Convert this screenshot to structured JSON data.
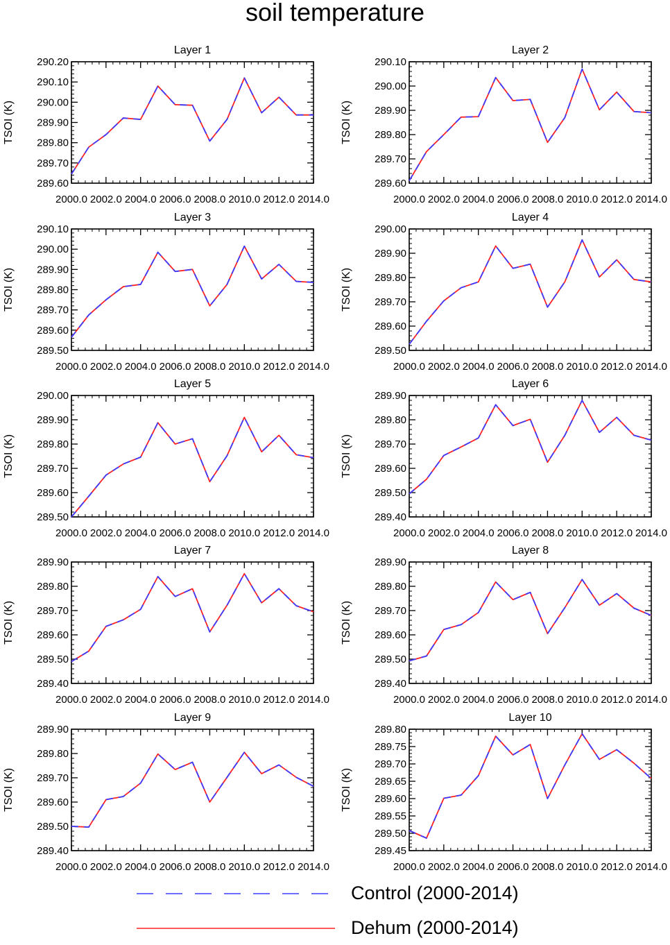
{
  "title": "soil temperature",
  "chart_data": [
    {
      "type": "line",
      "title": "Layer 1",
      "ylabel": "TSOI (K)",
      "x": [
        2000,
        2001,
        2002,
        2003,
        2004,
        2005,
        2006,
        2007,
        2008,
        2009,
        2010,
        2011,
        2012,
        2013,
        2014
      ],
      "xlim": [
        2000,
        2014
      ],
      "ylim": [
        289.6,
        290.2
      ],
      "xticks": [
        "2000.0",
        "2002.0",
        "2004.0",
        "2006.0",
        "2008.0",
        "2010.0",
        "2012.0",
        "2014.0"
      ],
      "yticks": [
        "289.60",
        "289.70",
        "289.80",
        "289.90",
        "290.00",
        "290.10",
        "290.20"
      ],
      "series": [
        {
          "name": "Control (2000-2014)",
          "values": [
            289.645,
            289.778,
            289.84,
            289.922,
            289.915,
            290.08,
            289.988,
            289.985,
            289.808,
            289.915,
            290.12,
            289.948,
            290.025,
            289.937,
            289.937
          ]
        },
        {
          "name": "Dehum (2000-2014)",
          "values": [
            289.645,
            289.778,
            289.84,
            289.922,
            289.915,
            290.08,
            289.988,
            289.985,
            289.808,
            289.915,
            290.12,
            289.948,
            290.025,
            289.937,
            289.937
          ]
        }
      ]
    },
    {
      "type": "line",
      "title": "Layer 2",
      "ylabel": "TSOI (K)",
      "x": [
        2000,
        2001,
        2002,
        2003,
        2004,
        2005,
        2006,
        2007,
        2008,
        2009,
        2010,
        2011,
        2012,
        2013,
        2014
      ],
      "xlim": [
        2000,
        2014
      ],
      "ylim": [
        289.6,
        290.1
      ],
      "xticks": [
        "2000.0",
        "2002.0",
        "2004.0",
        "2006.0",
        "2008.0",
        "2010.0",
        "2012.0",
        "2014.0"
      ],
      "yticks": [
        "289.60",
        "289.70",
        "289.80",
        "289.90",
        "290.00",
        "290.10"
      ],
      "series": [
        {
          "name": "Control (2000-2014)",
          "values": [
            289.61,
            289.73,
            289.8,
            289.872,
            289.874,
            290.035,
            289.94,
            289.945,
            289.768,
            289.87,
            290.07,
            289.902,
            289.975,
            289.895,
            289.89
          ]
        },
        {
          "name": "Dehum (2000-2014)",
          "values": [
            289.61,
            289.73,
            289.8,
            289.872,
            289.874,
            290.035,
            289.94,
            289.945,
            289.768,
            289.87,
            290.07,
            289.902,
            289.975,
            289.895,
            289.89
          ]
        }
      ]
    },
    {
      "type": "line",
      "title": "Layer 3",
      "ylabel": "TSOI (K)",
      "x": [
        2000,
        2001,
        2002,
        2003,
        2004,
        2005,
        2006,
        2007,
        2008,
        2009,
        2010,
        2011,
        2012,
        2013,
        2014
      ],
      "xlim": [
        2000,
        2014
      ],
      "ylim": [
        289.5,
        290.1
      ],
      "xticks": [
        "2000.0",
        "2002.0",
        "2004.0",
        "2006.0",
        "2008.0",
        "2010.0",
        "2012.0",
        "2014.0"
      ],
      "yticks": [
        "289.50",
        "289.60",
        "289.70",
        "289.80",
        "289.90",
        "290.00",
        "290.10"
      ],
      "series": [
        {
          "name": "Control (2000-2014)",
          "values": [
            289.565,
            289.675,
            289.75,
            289.815,
            289.826,
            289.985,
            289.89,
            289.9,
            289.72,
            289.826,
            290.015,
            289.853,
            289.925,
            289.841,
            289.836
          ]
        },
        {
          "name": "Dehum (2000-2014)",
          "values": [
            289.565,
            289.675,
            289.75,
            289.815,
            289.826,
            289.985,
            289.89,
            289.9,
            289.72,
            289.826,
            290.015,
            289.853,
            289.925,
            289.841,
            289.836
          ]
        }
      ]
    },
    {
      "type": "line",
      "title": "Layer 4",
      "ylabel": "TSOI (K)",
      "x": [
        2000,
        2001,
        2002,
        2003,
        2004,
        2005,
        2006,
        2007,
        2008,
        2009,
        2010,
        2011,
        2012,
        2013,
        2014
      ],
      "xlim": [
        2000,
        2014
      ],
      "ylim": [
        289.5,
        290.0
      ],
      "xticks": [
        "2000.0",
        "2002.0",
        "2004.0",
        "2006.0",
        "2008.0",
        "2010.0",
        "2012.0",
        "2014.0"
      ],
      "yticks": [
        "289.50",
        "289.60",
        "289.70",
        "289.80",
        "289.90",
        "290.00"
      ],
      "series": [
        {
          "name": "Control (2000-2014)",
          "values": [
            289.525,
            289.62,
            289.704,
            289.758,
            289.782,
            289.93,
            289.838,
            289.855,
            289.678,
            289.782,
            289.955,
            289.802,
            289.873,
            289.792,
            289.782
          ]
        },
        {
          "name": "Dehum (2000-2014)",
          "values": [
            289.525,
            289.62,
            289.704,
            289.758,
            289.782,
            289.93,
            289.838,
            289.855,
            289.678,
            289.782,
            289.955,
            289.802,
            289.873,
            289.792,
            289.782
          ]
        }
      ]
    },
    {
      "type": "line",
      "title": "Layer 5",
      "ylabel": "TSOI (K)",
      "x": [
        2000,
        2001,
        2002,
        2003,
        2004,
        2005,
        2006,
        2007,
        2008,
        2009,
        2010,
        2011,
        2012,
        2013,
        2014
      ],
      "xlim": [
        2000,
        2014
      ],
      "ylim": [
        289.5,
        290.0
      ],
      "xticks": [
        "2000.0",
        "2002.0",
        "2004.0",
        "2006.0",
        "2008.0",
        "2010.0",
        "2012.0",
        "2014.0"
      ],
      "yticks": [
        "289.50",
        "289.60",
        "289.70",
        "289.80",
        "289.90",
        "290.00"
      ],
      "series": [
        {
          "name": "Control (2000-2014)",
          "values": [
            289.5,
            289.585,
            289.672,
            289.718,
            289.746,
            289.888,
            289.8,
            289.822,
            289.645,
            289.752,
            289.91,
            289.768,
            289.836,
            289.756,
            289.744
          ]
        },
        {
          "name": "Dehum (2000-2014)",
          "values": [
            289.5,
            289.585,
            289.672,
            289.718,
            289.746,
            289.888,
            289.8,
            289.822,
            289.645,
            289.752,
            289.91,
            289.768,
            289.836,
            289.756,
            289.744
          ]
        }
      ]
    },
    {
      "type": "line",
      "title": "Layer 6",
      "ylabel": "TSOI (K)",
      "x": [
        2000,
        2001,
        2002,
        2003,
        2004,
        2005,
        2006,
        2007,
        2008,
        2009,
        2010,
        2011,
        2012,
        2013,
        2014
      ],
      "xlim": [
        2000,
        2014
      ],
      "ylim": [
        289.4,
        289.9
      ],
      "xticks": [
        "2000.0",
        "2002.0",
        "2004.0",
        "2006.0",
        "2008.0",
        "2010.0",
        "2012.0",
        "2014.0"
      ],
      "yticks": [
        "289.40",
        "289.50",
        "289.60",
        "289.70",
        "289.80",
        "289.90"
      ],
      "series": [
        {
          "name": "Control (2000-2014)",
          "values": [
            289.495,
            289.555,
            289.653,
            289.688,
            289.725,
            289.862,
            289.776,
            289.802,
            289.625,
            289.736,
            289.88,
            289.748,
            289.81,
            289.736,
            289.716
          ]
        },
        {
          "name": "Dehum (2000-2014)",
          "values": [
            289.495,
            289.555,
            289.653,
            289.688,
            289.725,
            289.862,
            289.776,
            289.802,
            289.625,
            289.736,
            289.88,
            289.748,
            289.81,
            289.736,
            289.716
          ]
        }
      ]
    },
    {
      "type": "line",
      "title": "Layer 7",
      "ylabel": "TSOI (K)",
      "x": [
        2000,
        2001,
        2002,
        2003,
        2004,
        2005,
        2006,
        2007,
        2008,
        2009,
        2010,
        2011,
        2012,
        2013,
        2014
      ],
      "xlim": [
        2000,
        2014
      ],
      "ylim": [
        289.4,
        289.9
      ],
      "xticks": [
        "2000.0",
        "2002.0",
        "2004.0",
        "2006.0",
        "2008.0",
        "2010.0",
        "2012.0",
        "2014.0"
      ],
      "yticks": [
        "289.40",
        "289.50",
        "289.60",
        "289.70",
        "289.80",
        "289.90"
      ],
      "series": [
        {
          "name": "Control (2000-2014)",
          "values": [
            289.49,
            289.533,
            289.635,
            289.662,
            289.705,
            289.84,
            289.758,
            289.79,
            289.612,
            289.722,
            289.852,
            289.732,
            289.79,
            289.72,
            289.695
          ]
        },
        {
          "name": "Dehum (2000-2014)",
          "values": [
            289.49,
            289.533,
            289.635,
            289.662,
            289.705,
            289.84,
            289.758,
            289.79,
            289.612,
            289.722,
            289.852,
            289.732,
            289.79,
            289.72,
            289.695
          ]
        }
      ]
    },
    {
      "type": "line",
      "title": "Layer 8",
      "ylabel": "TSOI (K)",
      "x": [
        2000,
        2001,
        2002,
        2003,
        2004,
        2005,
        2006,
        2007,
        2008,
        2009,
        2010,
        2011,
        2012,
        2013,
        2014
      ],
      "xlim": [
        2000,
        2014
      ],
      "ylim": [
        289.4,
        289.9
      ],
      "xticks": [
        "2000.0",
        "2002.0",
        "2004.0",
        "2006.0",
        "2008.0",
        "2010.0",
        "2012.0",
        "2014.0"
      ],
      "yticks": [
        "289.40",
        "289.50",
        "289.60",
        "289.70",
        "289.80",
        "289.90"
      ],
      "series": [
        {
          "name": "Control (2000-2014)",
          "values": [
            289.493,
            289.513,
            289.622,
            289.642,
            289.692,
            289.818,
            289.745,
            289.775,
            289.605,
            289.712,
            289.828,
            289.722,
            289.77,
            289.71,
            289.68
          ]
        },
        {
          "name": "Dehum (2000-2014)",
          "values": [
            289.493,
            289.513,
            289.622,
            289.642,
            289.692,
            289.818,
            289.745,
            289.775,
            289.605,
            289.712,
            289.828,
            289.722,
            289.77,
            289.71,
            289.68
          ]
        }
      ]
    },
    {
      "type": "line",
      "title": "Layer 9",
      "ylabel": "TSOI (K)",
      "x": [
        2000,
        2001,
        2002,
        2003,
        2004,
        2005,
        2006,
        2007,
        2008,
        2009,
        2010,
        2011,
        2012,
        2013,
        2014
      ],
      "xlim": [
        2000,
        2014
      ],
      "ylim": [
        289.4,
        289.9
      ],
      "xticks": [
        "2000.0",
        "2002.0",
        "2004.0",
        "2006.0",
        "2008.0",
        "2010.0",
        "2012.0",
        "2014.0"
      ],
      "yticks": [
        "289.40",
        "289.50",
        "289.60",
        "289.70",
        "289.80",
        "289.90"
      ],
      "series": [
        {
          "name": "Control (2000-2014)",
          "values": [
            289.5,
            289.497,
            289.61,
            289.623,
            289.678,
            289.798,
            289.734,
            289.764,
            289.6,
            289.702,
            289.805,
            289.717,
            289.753,
            289.702,
            289.665
          ]
        },
        {
          "name": "Dehum (2000-2014)",
          "values": [
            289.5,
            289.497,
            289.61,
            289.623,
            289.678,
            289.798,
            289.734,
            289.764,
            289.6,
            289.702,
            289.805,
            289.717,
            289.753,
            289.702,
            289.665
          ]
        }
      ]
    },
    {
      "type": "line",
      "title": "Layer 10",
      "ylabel": "TSOI (K)",
      "x": [
        2000,
        2001,
        2002,
        2003,
        2004,
        2005,
        2006,
        2007,
        2008,
        2009,
        2010,
        2011,
        2012,
        2013,
        2014
      ],
      "xlim": [
        2000,
        2014
      ],
      "ylim": [
        289.45,
        289.8
      ],
      "xticks": [
        "2000.0",
        "2002.0",
        "2004.0",
        "2006.0",
        "2008.0",
        "2010.0",
        "2012.0",
        "2014.0"
      ],
      "yticks": [
        "289.45",
        "289.50",
        "289.55",
        "289.60",
        "289.65",
        "289.70",
        "289.75",
        "289.80"
      ],
      "series": [
        {
          "name": "Control (2000-2014)",
          "values": [
            289.508,
            289.486,
            289.601,
            289.61,
            289.666,
            289.78,
            289.726,
            289.756,
            289.6,
            289.697,
            289.787,
            289.713,
            289.741,
            289.702,
            289.658
          ]
        },
        {
          "name": "Dehum (2000-2014)",
          "values": [
            289.508,
            289.486,
            289.601,
            289.61,
            289.666,
            289.78,
            289.726,
            289.756,
            289.6,
            289.697,
            289.787,
            289.713,
            289.741,
            289.702,
            289.658
          ]
        }
      ]
    }
  ],
  "legend": [
    {
      "name": "Control (2000-2014)",
      "color": "#3b3bff",
      "style": "dashed"
    },
    {
      "name": "Dehum (2000-2014)",
      "color": "#ff2222",
      "style": "solid"
    }
  ]
}
